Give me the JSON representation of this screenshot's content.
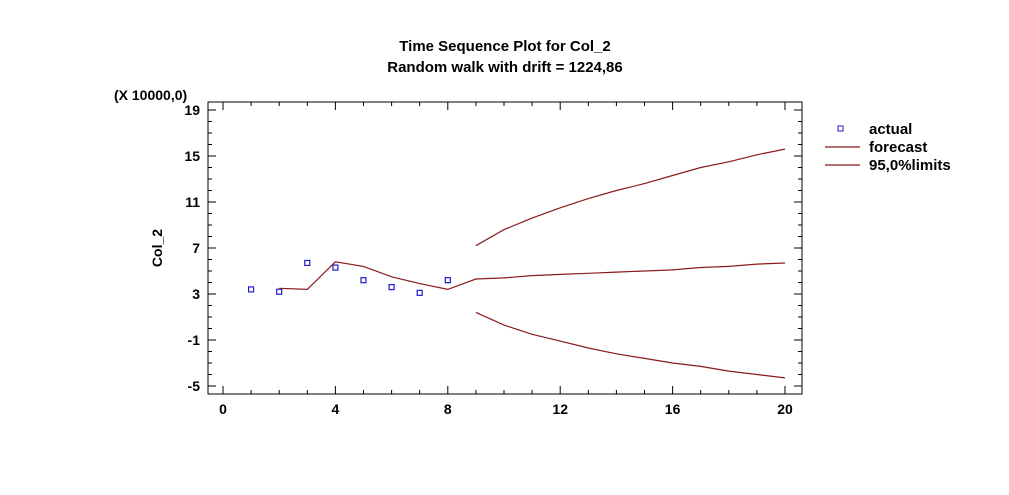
{
  "chart_data": {
    "type": "line",
    "title": "Time Sequence Plot for Col_2",
    "subtitle": "Random walk with drift = 1224,86",
    "ylabel": "Col_2",
    "xlabel": "",
    "yscale_note": "(X 10000,0)",
    "xlim": [
      0,
      20
    ],
    "ylim": [
      -5,
      19
    ],
    "xticks": [
      0,
      4,
      8,
      12,
      16,
      20
    ],
    "yticks": [
      19,
      15,
      11,
      7,
      3,
      -1,
      -5
    ],
    "legend_position": "right",
    "series": [
      {
        "name": "actual",
        "style": "markers",
        "color": "#1c1ccc",
        "x": [
          1,
          2,
          3,
          4,
          5,
          6,
          7,
          8
        ],
        "y": [
          3.4,
          3.2,
          5.7,
          5.3,
          4.2,
          3.6,
          3.1,
          4.2
        ]
      },
      {
        "name": "forecast",
        "style": "line",
        "color": "#8b1a1a",
        "x": [
          2,
          3,
          4,
          5,
          6,
          7,
          8,
          9,
          10,
          11,
          12,
          13,
          14,
          15,
          16,
          17,
          18,
          19,
          20
        ],
        "y": [
          3.5,
          3.4,
          5.8,
          5.4,
          4.5,
          3.9,
          3.4,
          4.3,
          4.4,
          4.6,
          4.7,
          4.8,
          4.9,
          5.0,
          5.1,
          5.3,
          5.4,
          5.6,
          5.7
        ]
      },
      {
        "name": "95,0%limits",
        "style": "line",
        "color": "#8b1a1a",
        "x": [
          9,
          10,
          11,
          12,
          13,
          14,
          15,
          16,
          17,
          18,
          19,
          20
        ],
        "y": [
          7.2,
          8.6,
          9.6,
          10.5,
          11.3,
          12.0,
          12.6,
          13.3,
          14.0,
          14.5,
          15.1,
          15.6
        ]
      },
      {
        "name": "",
        "style": "line",
        "color": "#8b1a1a",
        "x": [
          9,
          10,
          11,
          12,
          13,
          14,
          15,
          16,
          17,
          18,
          19,
          20
        ],
        "y": [
          1.4,
          0.3,
          -0.5,
          -1.1,
          -1.7,
          -2.2,
          -2.6,
          -3.0,
          -3.3,
          -3.7,
          -4.0,
          -4.3
        ]
      }
    ]
  },
  "colors": {
    "marker": "#1c1ccc",
    "line": "#8b1a1a",
    "axis": "#000000"
  }
}
